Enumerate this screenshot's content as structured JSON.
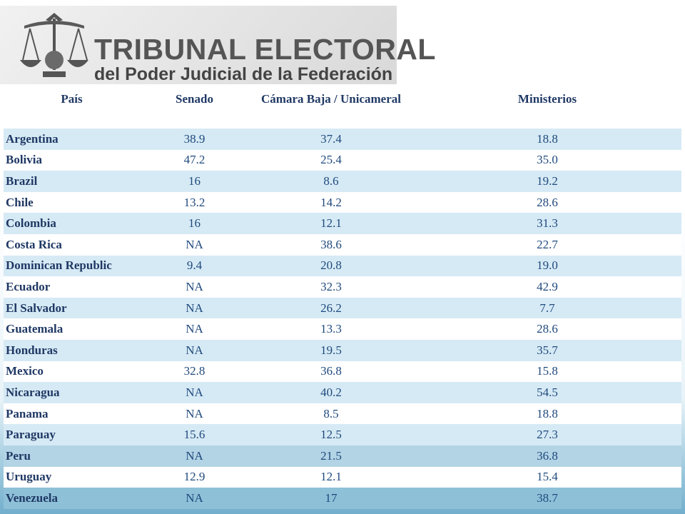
{
  "header": {
    "logo_line1": "TRIBUNAL ELECTORAL",
    "logo_line2": "del Poder Judicial de la Federación"
  },
  "table": {
    "columns": [
      "País",
      "Senado",
      "Cámara Baja / Unicameral",
      "Ministerios"
    ],
    "rows": [
      {
        "pais": "Argentina",
        "senado": "38.9",
        "camara": "37.4",
        "ministerios": "18.8"
      },
      {
        "pais": "Bolivia",
        "senado": "47.2",
        "camara": "25.4",
        "ministerios": "35.0"
      },
      {
        "pais": "Brazil",
        "senado": "16",
        "camara": "8.6",
        "ministerios": "19.2"
      },
      {
        "pais": "Chile",
        "senado": "13.2",
        "camara": "14.2",
        "ministerios": "28.6"
      },
      {
        "pais": "Colombia",
        "senado": "16",
        "camara": "12.1",
        "ministerios": "31.3"
      },
      {
        "pais": "Costa Rica",
        "senado": "NA",
        "camara": "38.6",
        "ministerios": "22.7"
      },
      {
        "pais": "Dominican Republic",
        "senado": "9.4",
        "camara": "20.8",
        "ministerios": "19.0"
      },
      {
        "pais": "Ecuador",
        "senado": "NA",
        "camara": "32.3",
        "ministerios": "42.9"
      },
      {
        "pais": "El Salvador",
        "senado": "NA",
        "camara": "26.2",
        "ministerios": "7.7"
      },
      {
        "pais": "Guatemala",
        "senado": "NA",
        "camara": "13.3",
        "ministerios": "28.6"
      },
      {
        "pais": "Honduras",
        "senado": "NA",
        "camara": "19.5",
        "ministerios": "35.7"
      },
      {
        "pais": "Mexico",
        "senado": "32.8",
        "camara": "36.8",
        "ministerios": "15.8"
      },
      {
        "pais": "Nicaragua",
        "senado": "NA",
        "camara": "40.2",
        "ministerios": "54.5"
      },
      {
        "pais": "Panama",
        "senado": "NA",
        "camara": "8.5",
        "ministerios": "18.8"
      },
      {
        "pais": "Paraguay",
        "senado": "15.6",
        "camara": "12.5",
        "ministerios": "27.3"
      },
      {
        "pais": "Peru",
        "senado": "NA",
        "camara": "21.5",
        "ministerios": "36.8"
      },
      {
        "pais": "Uruguay",
        "senado": "12.9",
        "camara": "12.1",
        "ministerios": "15.4"
      },
      {
        "pais": "Venezuela",
        "senado": "NA",
        "camara": "17",
        "ministerios": "38.7"
      }
    ]
  }
}
